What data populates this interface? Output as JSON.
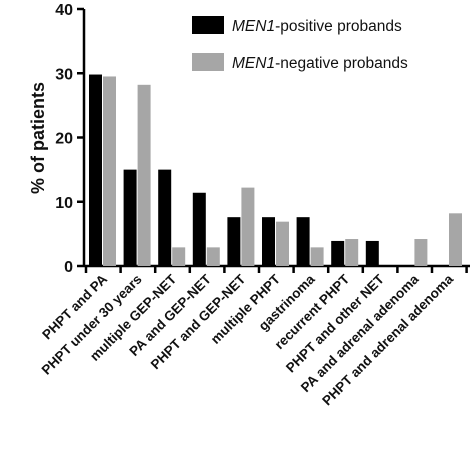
{
  "chart_data": {
    "type": "bar",
    "ylabel": "% of patients",
    "xlabel": "",
    "ylim": [
      0,
      40
    ],
    "yticks": [
      0,
      10,
      20,
      30,
      40
    ],
    "grid": false,
    "legend_position": "top-right",
    "categories": [
      "PHPT and PA",
      "PHPT under 30 years",
      "multiple GEP-NET",
      "PA and GEP-NET",
      "PHPT and GEP-NET",
      "multiple PHPT",
      "gastrinoma",
      "recurrent PHPT",
      "PHPT and other NET",
      "PA and adrenal adenoma",
      "PHPT and adrenal adenoma"
    ],
    "series": [
      {
        "name_italic": "MEN1",
        "name_rest": "-positive probands",
        "color": "#000000",
        "values": [
          29.8,
          15.0,
          15.0,
          11.4,
          7.6,
          7.6,
          7.6,
          3.9,
          3.9,
          0,
          0
        ]
      },
      {
        "name_italic": "MEN1",
        "name_rest": "-negative probands",
        "color": "#a6a6a6",
        "values": [
          29.5,
          28.2,
          2.9,
          2.9,
          12.2,
          6.9,
          2.9,
          4.2,
          0,
          4.2,
          8.2
        ]
      }
    ]
  }
}
